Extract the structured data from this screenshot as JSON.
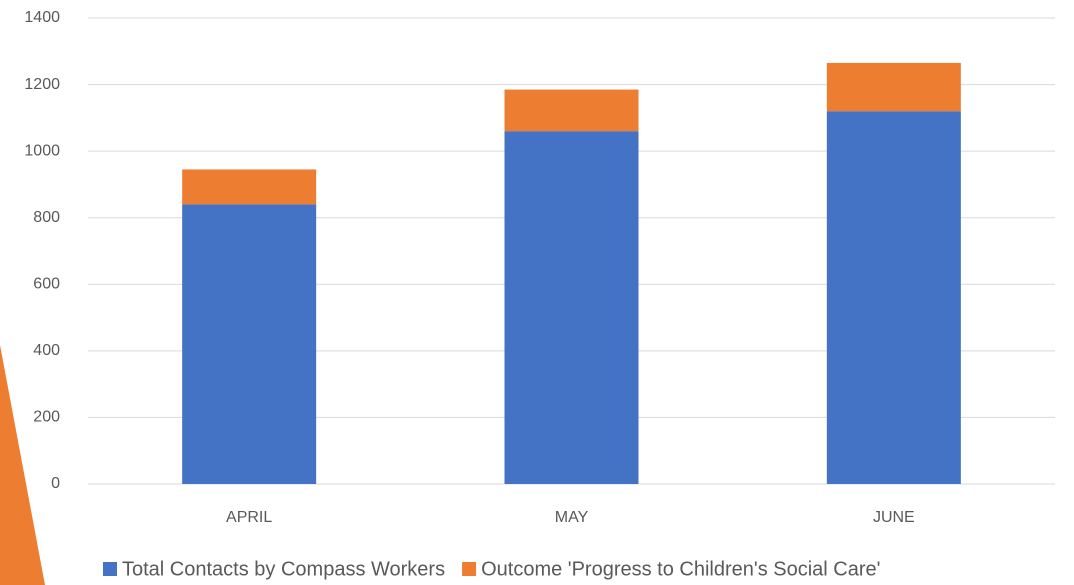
{
  "chart_data": {
    "type": "stacked_bar",
    "categories": [
      "APRIL",
      "MAY",
      "JUNE"
    ],
    "series": [
      {
        "name": "Total Contacts by Compass Workers",
        "color": "#4472c4",
        "values": [
          840,
          1060,
          1120
        ]
      },
      {
        "name": "Outcome 'Progress to Children's Social Care'",
        "color": "#ed7d31",
        "values": [
          105,
          125,
          145
        ]
      }
    ],
    "ylim": [
      0,
      1400
    ],
    "yticks": [
      0,
      200,
      400,
      600,
      800,
      1000,
      1200,
      1400
    ],
    "grid": true,
    "legend": "bottom"
  }
}
